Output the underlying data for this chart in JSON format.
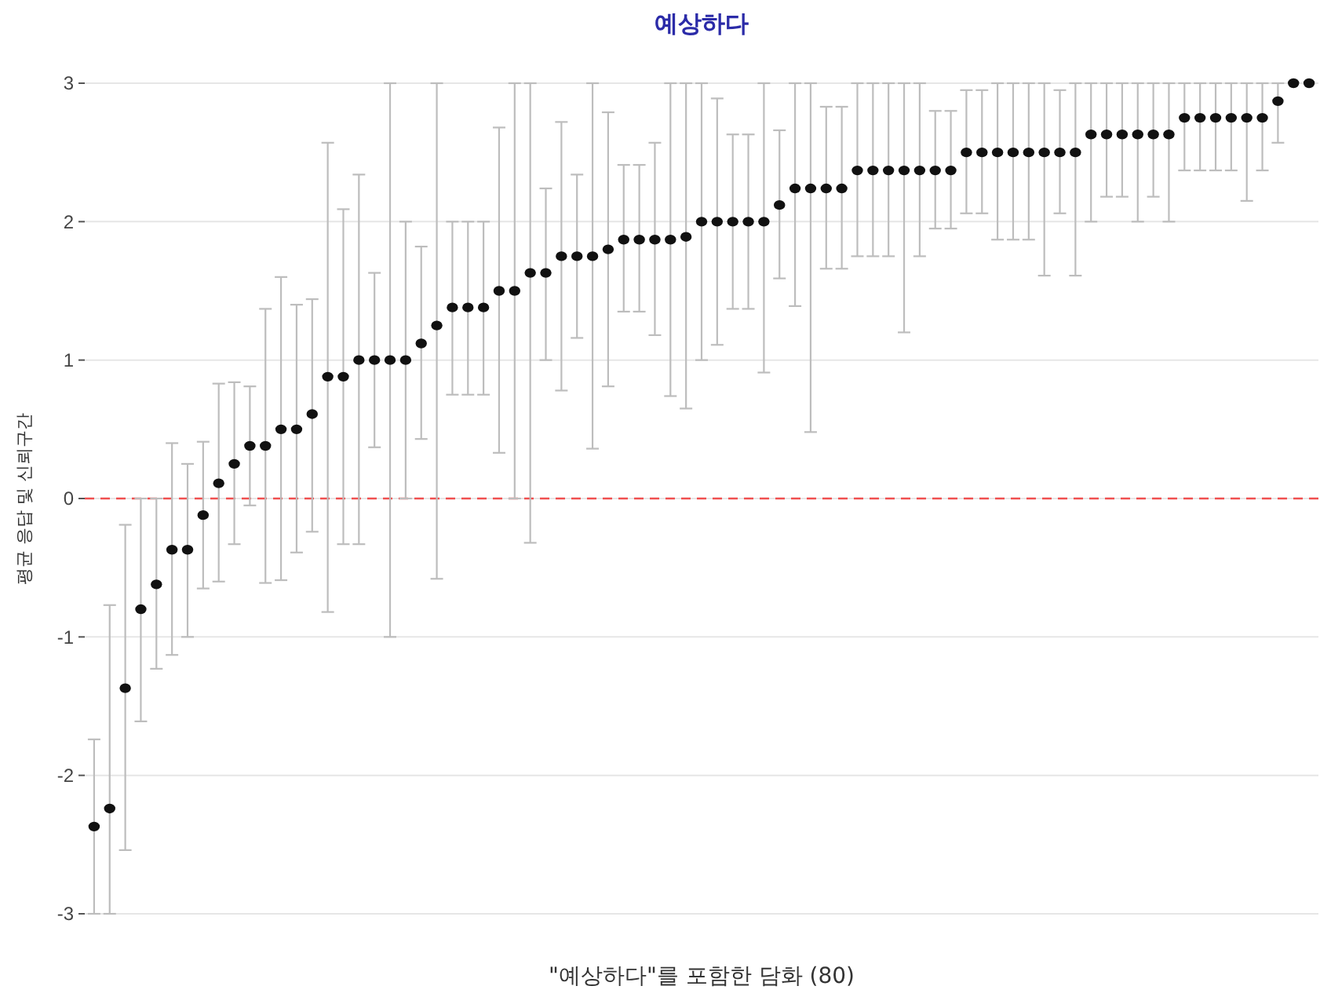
{
  "chart_data": {
    "type": "scatter",
    "title": "예상하다",
    "xlabel": "\"예상하다\"를 포함한 담화 (80)",
    "ylabel": "평균 응답 및 신뢰구간",
    "categories": [
      null,
      null,
      null,
      null,
      null,
      null,
      null,
      null,
      null,
      null,
      null,
      null,
      null,
      null,
      null,
      null,
      null,
      null,
      null,
      null,
      null,
      null,
      null,
      null,
      null,
      null,
      null,
      null,
      null,
      null,
      null,
      null,
      null,
      null,
      null,
      null,
      null,
      null,
      null,
      null,
      null,
      null,
      null,
      null,
      null,
      null,
      null,
      null,
      null,
      null,
      null,
      null,
      null,
      null,
      null,
      null,
      null,
      null,
      null,
      null,
      null,
      null,
      null,
      null,
      null,
      null,
      null,
      null,
      null,
      null,
      null,
      null,
      null,
      null,
      null,
      null,
      null,
      null,
      null
    ],
    "values": [
      -2.37,
      -2.24,
      -1.37,
      -0.8,
      -0.62,
      -0.37,
      -0.37,
      -0.12,
      0.11,
      0.25,
      0.38,
      0.38,
      0.5,
      0.5,
      0.61,
      0.88,
      0.88,
      1.0,
      1.0,
      1.0,
      1.0,
      1.12,
      1.25,
      1.38,
      1.38,
      1.38,
      1.5,
      1.5,
      1.63,
      1.63,
      1.75,
      1.75,
      1.75,
      1.8,
      1.87,
      1.87,
      1.87,
      1.87,
      1.89,
      2.0,
      2.0,
      2.0,
      2.0,
      2.0,
      2.12,
      2.24,
      2.24,
      2.24,
      2.24,
      2.37,
      2.37,
      2.37,
      2.37,
      2.37,
      2.37,
      2.37,
      2.5,
      2.5,
      2.5,
      2.5,
      2.5,
      2.5,
      2.5,
      2.5,
      2.63,
      2.63,
      2.63,
      2.63,
      2.63,
      2.63,
      2.75,
      2.75,
      2.75,
      2.75,
      2.75,
      2.75,
      2.87,
      3.0,
      3.0
    ],
    "errors": [
      [
        -3,
        -1.74
      ],
      [
        -3,
        -0.77
      ],
      [
        -2.54,
        -0.19
      ],
      [
        -1.61,
        0
      ],
      [
        -1.23,
        0
      ],
      [
        -1.13,
        0.4
      ],
      [
        -1.0,
        0.25
      ],
      [
        -0.65,
        0.41
      ],
      [
        -0.6,
        0.83
      ],
      [
        -0.33,
        0.84
      ],
      [
        -0.05,
        0.81
      ],
      [
        -0.61,
        1.37
      ],
      [
        -0.59,
        1.6
      ],
      [
        -0.39,
        1.4
      ],
      [
        -0.24,
        1.44
      ],
      [
        -0.82,
        2.57
      ],
      [
        -0.33,
        2.09
      ],
      [
        -0.33,
        2.34
      ],
      [
        0.37,
        1.63
      ],
      [
        -1.0,
        3
      ],
      [
        0,
        2.0
      ],
      [
        0.43,
        1.82
      ],
      [
        -0.58,
        3
      ],
      [
        0.75,
        2.0
      ],
      [
        0.75,
        2.0
      ],
      [
        0.75,
        2.0
      ],
      [
        0.33,
        2.68
      ],
      [
        0,
        3
      ],
      [
        -0.32,
        3
      ],
      [
        1.0,
        2.24
      ],
      [
        0.78,
        2.72
      ],
      [
        1.16,
        2.34
      ],
      [
        0.36,
        3
      ],
      [
        0.81,
        2.79
      ],
      [
        1.35,
        2.41
      ],
      [
        1.35,
        2.41
      ],
      [
        1.18,
        2.57
      ],
      [
        0.74,
        3
      ],
      [
        0.65,
        3
      ],
      [
        1.0,
        3
      ],
      [
        1.11,
        2.89
      ],
      [
        1.37,
        2.63
      ],
      [
        1.37,
        2.63
      ],
      [
        0.91,
        3
      ],
      [
        1.59,
        2.66
      ],
      [
        1.39,
        3
      ],
      [
        0.48,
        3
      ],
      [
        1.66,
        2.83
      ],
      [
        1.66,
        2.83
      ],
      [
        1.75,
        3
      ],
      [
        1.75,
        3
      ],
      [
        1.75,
        3
      ],
      [
        1.2,
        3
      ],
      [
        1.75,
        3
      ],
      [
        1.95,
        2.8
      ],
      [
        1.95,
        2.8
      ],
      [
        2.06,
        2.95
      ],
      [
        2.06,
        2.95
      ],
      [
        1.87,
        3
      ],
      [
        1.87,
        3
      ],
      [
        1.87,
        3
      ],
      [
        1.61,
        3
      ],
      [
        2.06,
        2.95
      ],
      [
        1.61,
        3
      ],
      [
        2.0,
        3
      ],
      [
        2.18,
        3
      ],
      [
        2.18,
        3
      ],
      [
        2.0,
        3
      ],
      [
        2.18,
        3
      ],
      [
        2.0,
        3
      ],
      [
        2.37,
        3
      ],
      [
        2.37,
        3
      ],
      [
        2.37,
        3
      ],
      [
        2.37,
        3
      ],
      [
        2.15,
        3
      ],
      [
        2.37,
        3
      ],
      [
        2.57,
        3
      ],
      null,
      null
    ],
    "color": "#111111",
    "marker": "circle",
    "ylim": [
      -3,
      3
    ],
    "yticks": [
      -3,
      -2,
      -1,
      0,
      1,
      2,
      3
    ],
    "grid": "y",
    "ref_lines": [
      {
        "axis": "y",
        "value": 0,
        "color": "#f05050",
        "line_style": "dashed"
      }
    ],
    "tick_labels": "y"
  }
}
